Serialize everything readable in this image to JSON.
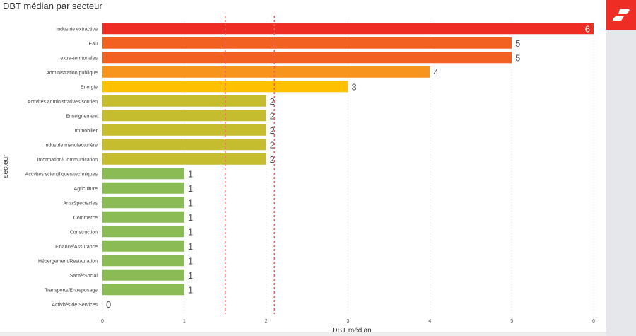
{
  "chart_data": {
    "type": "bar",
    "orientation": "horizontal",
    "title": "DBT médian par secteur",
    "xlabel": "DBT médian",
    "ylabel": "secteur",
    "xlim": [
      0,
      6
    ],
    "xticks": [
      "0",
      "1",
      "2",
      "3",
      "4",
      "5",
      "6"
    ],
    "grid": true,
    "reference_lines": [
      1.5,
      2.1
    ],
    "categories": [
      "Industrie extractive",
      "Eau",
      "extra-territoriales",
      "Administration publique",
      "Energie",
      "Activités administratives/soutien",
      "Enseignement",
      "Immobilier",
      "Industrie manufacturière",
      "Information/Communication",
      "Activités scientifiques/techniques",
      "Agriculture",
      "Arts/Spectacles",
      "Commerce",
      "Construction",
      "Finance/Assurance",
      "Hébergement/Restauration",
      "Santé/Social",
      "Transports/Entreposage",
      "Activités de Services"
    ],
    "values": [
      6,
      5,
      5,
      4,
      3,
      2,
      2,
      2,
      2,
      2,
      1,
      1,
      1,
      1,
      1,
      1,
      1,
      1,
      1,
      0
    ],
    "labels": [
      "6",
      "5",
      "5",
      "4",
      "3",
      "2",
      "2",
      "2",
      "2",
      "2",
      "1",
      "1",
      "1",
      "1",
      "1",
      "1",
      "1",
      "1",
      "1",
      "0"
    ],
    "colors": [
      "#ee2e24",
      "#f26122",
      "#f26122",
      "#f7941d",
      "#ffc000",
      "#c5bc2e",
      "#c5bc2e",
      "#c5bc2e",
      "#c5bc2e",
      "#c5bc2e",
      "#8bbb55",
      "#8bbb55",
      "#8bbb55",
      "#8bbb55",
      "#8bbb55",
      "#8bbb55",
      "#8bbb55",
      "#8bbb55",
      "#8bbb55",
      "#8bbb55"
    ],
    "refline_color": "#f26060"
  }
}
